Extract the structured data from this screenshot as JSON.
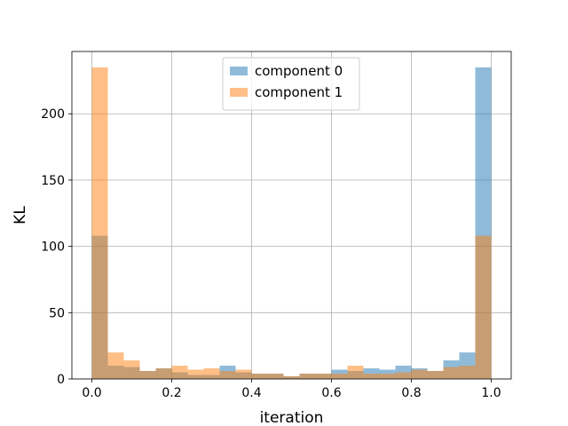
{
  "chart_data": {
    "type": "bar",
    "subtype": "overlapping-histogram",
    "xlabel": "iteration",
    "ylabel": "KL",
    "xlim": [
      -0.05,
      1.05
    ],
    "ylim": [
      0,
      247
    ],
    "xticks": [
      "0.0",
      "0.2",
      "0.4",
      "0.6",
      "0.8",
      "1.0"
    ],
    "yticks": [
      "0",
      "50",
      "100",
      "150",
      "200"
    ],
    "grid": true,
    "legend_position": "upper center",
    "bin_width": 0.04,
    "bin_starts": [
      0.0,
      0.04,
      0.08,
      0.12,
      0.16,
      0.2,
      0.24,
      0.28,
      0.32,
      0.36,
      0.4,
      0.44,
      0.48,
      0.52,
      0.56,
      0.6,
      0.64,
      0.68,
      0.72,
      0.76,
      0.8,
      0.84,
      0.88,
      0.92,
      0.96
    ],
    "series": [
      {
        "name": "component 0",
        "color": "#1f77b4",
        "values": [
          108,
          10,
          9,
          6,
          8,
          5,
          3,
          3,
          10,
          5,
          4,
          4,
          2,
          4,
          4,
          7,
          6,
          8,
          7,
          10,
          8,
          6,
          14,
          20,
          235
        ]
      },
      {
        "name": "component 1",
        "color": "#ff7f0e",
        "values": [
          235,
          20,
          14,
          6,
          8,
          10,
          7,
          8,
          6,
          7,
          4,
          4,
          2,
          4,
          4,
          4,
          10,
          4,
          4,
          5,
          7,
          6,
          9,
          10,
          108
        ]
      }
    ]
  }
}
